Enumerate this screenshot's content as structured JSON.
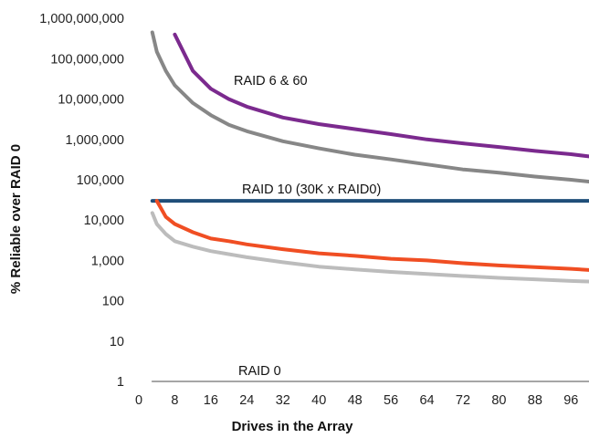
{
  "chart_data": {
    "type": "line",
    "title": "",
    "xlabel": "Drives in the Array",
    "ylabel": "% Reliable over RAID 0",
    "x_scale": "linear",
    "y_scale": "log",
    "xlim": [
      0,
      100
    ],
    "ylim": [
      1,
      1000000000
    ],
    "x_ticks": [
      "0",
      "8",
      "16",
      "24",
      "32",
      "40",
      "48",
      "56",
      "64",
      "72",
      "80",
      "88",
      "96"
    ],
    "y_ticks": [
      "1",
      "10",
      "100",
      "1,000",
      "10,000",
      "100,000",
      "1,000,000",
      "10,000,000",
      "100,000,000",
      "1,000,000,000"
    ],
    "grid": false,
    "legend": "none",
    "annotations": [
      "RAID 6 & 60",
      "RAID 10 (30K x RAID0)",
      "RAID 0"
    ],
    "series": [
      {
        "color": "#7b2a8e",
        "points": [
          [
            8,
            400000000
          ],
          [
            12,
            50000000
          ],
          [
            16,
            18000000
          ],
          [
            20,
            10000000
          ],
          [
            24,
            6500000
          ],
          [
            32,
            3500000
          ],
          [
            40,
            2400000
          ],
          [
            48,
            1800000
          ],
          [
            56,
            1350000
          ],
          [
            64,
            1000000
          ],
          [
            72,
            800000
          ],
          [
            80,
            650000
          ],
          [
            88,
            520000
          ],
          [
            96,
            430000
          ],
          [
            100,
            380000
          ]
        ]
      },
      {
        "color": "#878787",
        "points": [
          [
            3,
            450000000
          ],
          [
            4,
            150000000
          ],
          [
            6,
            50000000
          ],
          [
            8,
            22000000
          ],
          [
            12,
            8000000
          ],
          [
            16,
            4000000
          ],
          [
            20,
            2300000
          ],
          [
            24,
            1600000
          ],
          [
            32,
            900000
          ],
          [
            40,
            600000
          ],
          [
            48,
            420000
          ],
          [
            56,
            320000
          ],
          [
            64,
            240000
          ],
          [
            72,
            180000
          ],
          [
            80,
            150000
          ],
          [
            88,
            120000
          ],
          [
            96,
            100000
          ],
          [
            100,
            90000
          ]
        ]
      },
      {
        "color": "#1f4e79",
        "points": [
          [
            3,
            30000
          ],
          [
            100,
            30000
          ]
        ]
      },
      {
        "color": "#f04e23",
        "points": [
          [
            4,
            30000
          ],
          [
            6,
            12000
          ],
          [
            8,
            8000
          ],
          [
            12,
            5000
          ],
          [
            16,
            3500
          ],
          [
            20,
            3000
          ],
          [
            24,
            2500
          ],
          [
            32,
            1900
          ],
          [
            40,
            1500
          ],
          [
            48,
            1300
          ],
          [
            56,
            1100
          ],
          [
            64,
            1000
          ],
          [
            72,
            850
          ],
          [
            80,
            750
          ],
          [
            88,
            680
          ],
          [
            96,
            620
          ],
          [
            100,
            580
          ]
        ]
      },
      {
        "color": "#bcbcbc",
        "points": [
          [
            3,
            15000
          ],
          [
            4,
            8000
          ],
          [
            6,
            4500
          ],
          [
            8,
            3000
          ],
          [
            12,
            2200
          ],
          [
            16,
            1700
          ],
          [
            24,
            1200
          ],
          [
            32,
            900
          ],
          [
            40,
            700
          ],
          [
            48,
            600
          ],
          [
            56,
            520
          ],
          [
            64,
            460
          ],
          [
            72,
            410
          ],
          [
            80,
            370
          ],
          [
            88,
            340
          ],
          [
            96,
            310
          ],
          [
            100,
            300
          ]
        ]
      },
      {
        "color": "#a6a6a6",
        "points": [
          [
            3,
            1
          ],
          [
            100,
            1
          ]
        ]
      }
    ]
  }
}
